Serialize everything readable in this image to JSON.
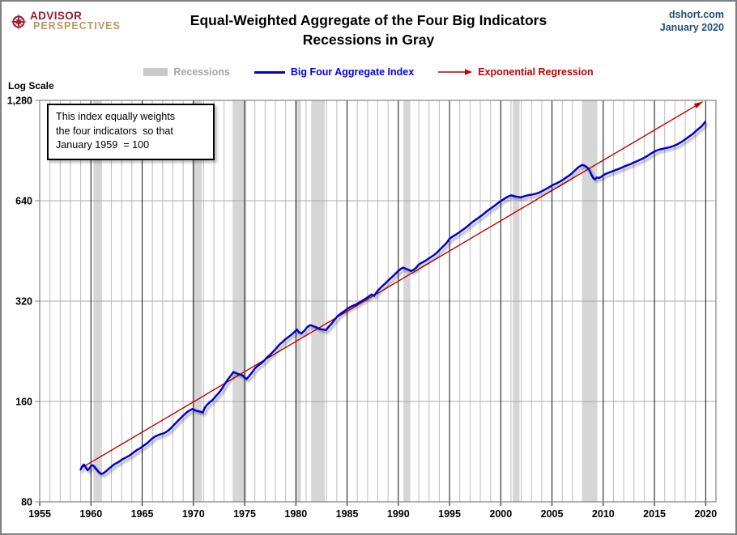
{
  "header": {
    "logo": {
      "line1": "ADVISOR",
      "line2": "PERSPECTIVES"
    },
    "source": "dshort.com",
    "date": "January 2020"
  },
  "title": {
    "line1": "Equal-Weighted Aggregate of the Four Big Indicators",
    "line2": "Recessions in Gray"
  },
  "legend": {
    "items": [
      {
        "label": "Recessions",
        "swatch": "band",
        "color": "#C9C9C9",
        "text_color": "#A6A6A6"
      },
      {
        "label": "Big Four Aggregate Index",
        "swatch": "line",
        "color": "#0000CD",
        "text_color": "#0000EE"
      },
      {
        "label": "Exponential Regression",
        "swatch": "arrow",
        "color": "#C00000",
        "text_color": "#C00000"
      }
    ]
  },
  "annotation": {
    "lines": [
      "This index equally weights",
      "the four indicators  so that",
      "January 1959  = 100"
    ]
  },
  "chart_data": {
    "type": "line",
    "scale_label": "Log Scale",
    "y_scale": "log",
    "ylim": [
      80,
      1280
    ],
    "y_ticks": [
      80,
      160,
      320,
      640,
      1280
    ],
    "y_tick_labels": [
      "80",
      "160",
      "320",
      "640",
      "1,280"
    ],
    "xlim": [
      1955,
      2021
    ],
    "x_ticks": [
      1955,
      1960,
      1965,
      1970,
      1975,
      1980,
      1985,
      1990,
      1995,
      2000,
      2005,
      2010,
      2015,
      2020
    ],
    "grid": {
      "minor_x_every_years": 1,
      "major_x_every_years": 5
    },
    "colors": {
      "recession_band": "#d6d6d6",
      "minor_grid": "#bcbcbc",
      "major_grid_y": "#a8a8a8",
      "five_year_line": "#111111",
      "frame": "#808080"
    },
    "recessions": [
      [
        1960.25,
        1961.08
      ],
      [
        1969.92,
        1970.83
      ],
      [
        1973.83,
        1975.17
      ],
      [
        1980.0,
        1980.5
      ],
      [
        1981.5,
        1982.83
      ],
      [
        1990.5,
        1991.17
      ],
      [
        2001.17,
        2001.83
      ],
      [
        2007.92,
        2009.42
      ]
    ],
    "series": [
      {
        "name": "Big Four Aggregate Index",
        "color": "#0000cd",
        "width": 2.5,
        "points": [
          [
            1959.0,
            100
          ],
          [
            1959.17,
            102.5
          ],
          [
            1959.33,
            103.5
          ],
          [
            1959.5,
            101.5
          ],
          [
            1959.67,
            99.5
          ],
          [
            1959.83,
            100.5
          ],
          [
            1960.0,
            102.5
          ],
          [
            1960.17,
            103
          ],
          [
            1960.33,
            102
          ],
          [
            1960.5,
            100.5
          ],
          [
            1960.67,
            99
          ],
          [
            1960.83,
            97.8
          ],
          [
            1961.0,
            97
          ],
          [
            1961.17,
            97.3
          ],
          [
            1961.33,
            98
          ],
          [
            1961.5,
            99
          ],
          [
            1961.75,
            100.5
          ],
          [
            1962.0,
            102
          ],
          [
            1962.25,
            103.5
          ],
          [
            1962.5,
            104.5
          ],
          [
            1962.75,
            105.5
          ],
          [
            1963.0,
            107
          ],
          [
            1963.25,
            108
          ],
          [
            1963.5,
            109
          ],
          [
            1963.75,
            110
          ],
          [
            1964.0,
            111.5
          ],
          [
            1964.25,
            113
          ],
          [
            1964.5,
            114.5
          ],
          [
            1964.75,
            115.5
          ],
          [
            1965.0,
            117
          ],
          [
            1965.25,
            118.5
          ],
          [
            1965.5,
            120
          ],
          [
            1965.75,
            122
          ],
          [
            1966.0,
            124
          ],
          [
            1966.25,
            125.5
          ],
          [
            1966.5,
            126.5
          ],
          [
            1966.75,
            127.5
          ],
          [
            1967.0,
            128
          ],
          [
            1967.25,
            129
          ],
          [
            1967.5,
            130.5
          ],
          [
            1967.75,
            132.5
          ],
          [
            1968.0,
            135
          ],
          [
            1968.25,
            137.5
          ],
          [
            1968.5,
            140
          ],
          [
            1968.75,
            142.5
          ],
          [
            1969.0,
            145
          ],
          [
            1969.25,
            147.5
          ],
          [
            1969.5,
            149.5
          ],
          [
            1969.75,
            151
          ],
          [
            1969.92,
            152
          ],
          [
            1970.1,
            151
          ],
          [
            1970.3,
            150
          ],
          [
            1970.5,
            149.5
          ],
          [
            1970.7,
            149
          ],
          [
            1970.92,
            148
          ],
          [
            1971.1,
            153
          ],
          [
            1971.3,
            156
          ],
          [
            1971.6,
            159
          ],
          [
            1971.9,
            162
          ],
          [
            1972.2,
            166
          ],
          [
            1972.5,
            170
          ],
          [
            1972.8,
            175
          ],
          [
            1973.1,
            181
          ],
          [
            1973.4,
            187
          ],
          [
            1973.7,
            192
          ],
          [
            1973.9,
            196
          ],
          [
            1974.1,
            195
          ],
          [
            1974.35,
            193.5
          ],
          [
            1974.6,
            192.5
          ],
          [
            1974.85,
            191
          ],
          [
            1975.05,
            188
          ],
          [
            1975.2,
            187
          ],
          [
            1975.4,
            190
          ],
          [
            1975.7,
            195
          ],
          [
            1976.0,
            201
          ],
          [
            1976.3,
            205
          ],
          [
            1976.6,
            208
          ],
          [
            1976.9,
            212
          ],
          [
            1977.2,
            217
          ],
          [
            1977.5,
            221
          ],
          [
            1977.8,
            226
          ],
          [
            1978.1,
            231
          ],
          [
            1978.4,
            237
          ],
          [
            1978.7,
            241
          ],
          [
            1979.0,
            246
          ],
          [
            1979.3,
            250
          ],
          [
            1979.6,
            254
          ],
          [
            1979.9,
            259
          ],
          [
            1980.1,
            263
          ],
          [
            1980.3,
            258
          ],
          [
            1980.55,
            256
          ],
          [
            1980.8,
            260
          ],
          [
            1981.1,
            267
          ],
          [
            1981.4,
            271
          ],
          [
            1981.7,
            269
          ],
          [
            1982.0,
            267
          ],
          [
            1982.3,
            264
          ],
          [
            1982.6,
            263
          ],
          [
            1982.95,
            262
          ],
          [
            1983.2,
            268
          ],
          [
            1983.5,
            274
          ],
          [
            1983.8,
            282
          ],
          [
            1984.1,
            289
          ],
          [
            1984.4,
            294
          ],
          [
            1984.7,
            298
          ],
          [
            1985.0,
            303
          ],
          [
            1985.3,
            307
          ],
          [
            1985.6,
            310
          ],
          [
            1985.9,
            313
          ],
          [
            1986.2,
            317
          ],
          [
            1986.5,
            321
          ],
          [
            1986.8,
            325
          ],
          [
            1987.1,
            330
          ],
          [
            1987.4,
            335
          ],
          [
            1987.65,
            332
          ],
          [
            1987.9,
            341
          ],
          [
            1988.2,
            349
          ],
          [
            1988.5,
            356
          ],
          [
            1988.8,
            363
          ],
          [
            1989.1,
            371
          ],
          [
            1989.4,
            378
          ],
          [
            1989.7,
            386
          ],
          [
            1990.0,
            394
          ],
          [
            1990.25,
            400
          ],
          [
            1990.5,
            403
          ],
          [
            1990.75,
            400
          ],
          [
            1991.0,
            397
          ],
          [
            1991.25,
            394
          ],
          [
            1991.5,
            397
          ],
          [
            1991.75,
            403
          ],
          [
            1992.0,
            412
          ],
          [
            1992.3,
            417
          ],
          [
            1992.6,
            422
          ],
          [
            1992.9,
            428
          ],
          [
            1993.2,
            434
          ],
          [
            1993.5,
            440
          ],
          [
            1993.8,
            448
          ],
          [
            1994.1,
            458
          ],
          [
            1994.4,
            468
          ],
          [
            1994.7,
            478
          ],
          [
            1995.0,
            492
          ],
          [
            1995.3,
            500
          ],
          [
            1995.6,
            506
          ],
          [
            1995.9,
            513
          ],
          [
            1996.2,
            521
          ],
          [
            1996.5,
            529
          ],
          [
            1996.8,
            538
          ],
          [
            1997.1,
            548
          ],
          [
            1997.4,
            557
          ],
          [
            1997.7,
            565
          ],
          [
            1998.0,
            574
          ],
          [
            1998.3,
            583
          ],
          [
            1998.6,
            594
          ],
          [
            1998.9,
            603
          ],
          [
            1999.2,
            612
          ],
          [
            1999.5,
            622
          ],
          [
            1999.8,
            632
          ],
          [
            2000.1,
            641
          ],
          [
            2000.4,
            650
          ],
          [
            2000.7,
            658
          ],
          [
            2001.0,
            664
          ],
          [
            2001.2,
            662
          ],
          [
            2001.45,
            659
          ],
          [
            2001.7,
            657
          ],
          [
            2001.95,
            655
          ],
          [
            2002.2,
            659
          ],
          [
            2002.5,
            663
          ],
          [
            2002.8,
            666
          ],
          [
            2003.1,
            668
          ],
          [
            2003.4,
            671
          ],
          [
            2003.7,
            676
          ],
          [
            2004.0,
            683
          ],
          [
            2004.3,
            691
          ],
          [
            2004.6,
            699
          ],
          [
            2004.9,
            708
          ],
          [
            2005.2,
            716
          ],
          [
            2005.5,
            723
          ],
          [
            2005.8,
            731
          ],
          [
            2006.1,
            741
          ],
          [
            2006.4,
            752
          ],
          [
            2006.7,
            763
          ],
          [
            2007.0,
            776
          ],
          [
            2007.3,
            792
          ],
          [
            2007.6,
            808
          ],
          [
            2007.95,
            820
          ],
          [
            2008.2,
            815
          ],
          [
            2008.45,
            805
          ],
          [
            2008.65,
            790
          ],
          [
            2008.85,
            765
          ],
          [
            2009.05,
            747
          ],
          [
            2009.2,
            742
          ],
          [
            2009.4,
            752
          ],
          [
            2009.6,
            749
          ],
          [
            2009.8,
            755
          ],
          [
            2010.0,
            763
          ],
          [
            2010.3,
            772
          ],
          [
            2010.6,
            778
          ],
          [
            2010.9,
            784
          ],
          [
            2011.2,
            791
          ],
          [
            2011.5,
            797
          ],
          [
            2011.8,
            804
          ],
          [
            2012.1,
            812
          ],
          [
            2012.4,
            819
          ],
          [
            2012.7,
            825
          ],
          [
            2013.0,
            833
          ],
          [
            2013.3,
            841
          ],
          [
            2013.6,
            849
          ],
          [
            2013.9,
            858
          ],
          [
            2014.2,
            868
          ],
          [
            2014.5,
            880
          ],
          [
            2014.8,
            892
          ],
          [
            2015.1,
            902
          ],
          [
            2015.4,
            910
          ],
          [
            2015.7,
            915
          ],
          [
            2016.0,
            919
          ],
          [
            2016.3,
            923
          ],
          [
            2016.6,
            928
          ],
          [
            2016.9,
            935
          ],
          [
            2017.2,
            944
          ],
          [
            2017.5,
            955
          ],
          [
            2017.8,
            968
          ],
          [
            2018.1,
            983
          ],
          [
            2018.4,
            998
          ],
          [
            2018.7,
            1013
          ],
          [
            2019.0,
            1032
          ],
          [
            2019.2,
            1045
          ],
          [
            2019.4,
            1058
          ],
          [
            2019.6,
            1070
          ],
          [
            2019.8,
            1088
          ],
          [
            2019.95,
            1103
          ]
        ]
      },
      {
        "name": "Exponential Regression",
        "color": "#c00000",
        "width": 1.4,
        "arrow_end": true,
        "points": [
          [
            1959.05,
            101
          ],
          [
            2019.7,
            1268
          ]
        ]
      }
    ]
  }
}
